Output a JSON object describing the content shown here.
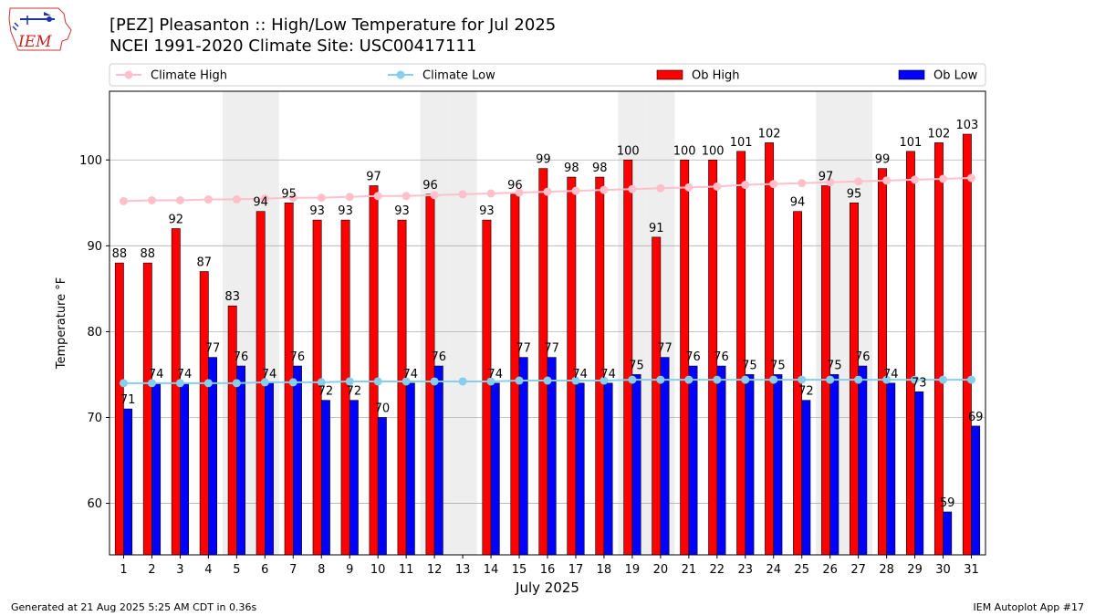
{
  "header": {
    "title_line1": "[PEZ] Pleasanton :: High/Low Temperature for Jul 2025",
    "title_line2": "NCEI 1991-2020 Climate Site: USC00417111"
  },
  "logo": {
    "text": "IEM"
  },
  "footer": {
    "generated": "Generated at 21 Aug 2025 5:25 AM CDT in 0.36s",
    "app": "IEM Autoplot App #17"
  },
  "colors": {
    "ob_high": "#ff0000",
    "ob_low": "#0000ff",
    "climate_high": "#ffc0cb",
    "climate_low": "#87ceeb",
    "weekend_shade": "#eeeeee",
    "grid": "#b0b0b0"
  },
  "chart_data": {
    "type": "bar",
    "xlabel": "July 2025",
    "ylabel": "Temperature °F",
    "ylim": [
      54,
      108
    ],
    "yticks": [
      60,
      70,
      80,
      90,
      100
    ],
    "grid": "horizontal",
    "legend_placement": "top",
    "categories": [
      "1",
      "2",
      "3",
      "4",
      "5",
      "6",
      "7",
      "8",
      "9",
      "10",
      "11",
      "12",
      "13",
      "14",
      "15",
      "16",
      "17",
      "18",
      "19",
      "20",
      "21",
      "22",
      "23",
      "24",
      "25",
      "26",
      "27",
      "28",
      "29",
      "30",
      "31"
    ],
    "shaded_days": [
      5,
      6,
      12,
      13,
      19,
      20,
      26,
      27
    ],
    "series": [
      {
        "name": "Ob High",
        "kind": "bar",
        "values": [
          88,
          88,
          92,
          87,
          83,
          94,
          95,
          93,
          93,
          97,
          93,
          96,
          null,
          93,
          96,
          99,
          98,
          98,
          100,
          91,
          100,
          100,
          101,
          102,
          94,
          97,
          95,
          99,
          101,
          102,
          103
        ]
      },
      {
        "name": "Ob Low",
        "kind": "bar",
        "values": [
          71,
          74,
          74,
          77,
          76,
          74,
          76,
          72,
          72,
          70,
          74,
          76,
          null,
          74,
          77,
          77,
          74,
          74,
          75,
          77,
          76,
          76,
          75,
          75,
          72,
          75,
          76,
          74,
          73,
          59,
          69
        ]
      },
      {
        "name": "Climate High",
        "kind": "line",
        "values": [
          95.2,
          95.3,
          95.3,
          95.4,
          95.4,
          95.5,
          95.6,
          95.6,
          95.7,
          95.8,
          95.8,
          95.9,
          96.0,
          96.1,
          96.2,
          96.3,
          96.4,
          96.5,
          96.6,
          96.7,
          96.8,
          96.9,
          97.1,
          97.2,
          97.3,
          97.4,
          97.5,
          97.6,
          97.7,
          97.8,
          97.9
        ]
      },
      {
        "name": "Climate Low",
        "kind": "line",
        "values": [
          74.0,
          74.0,
          74.0,
          74.0,
          74.0,
          74.1,
          74.1,
          74.1,
          74.2,
          74.2,
          74.2,
          74.2,
          74.2,
          74.2,
          74.3,
          74.3,
          74.3,
          74.3,
          74.4,
          74.4,
          74.4,
          74.4,
          74.4,
          74.4,
          74.4,
          74.4,
          74.4,
          74.4,
          74.4,
          74.4,
          74.4
        ]
      }
    ]
  }
}
